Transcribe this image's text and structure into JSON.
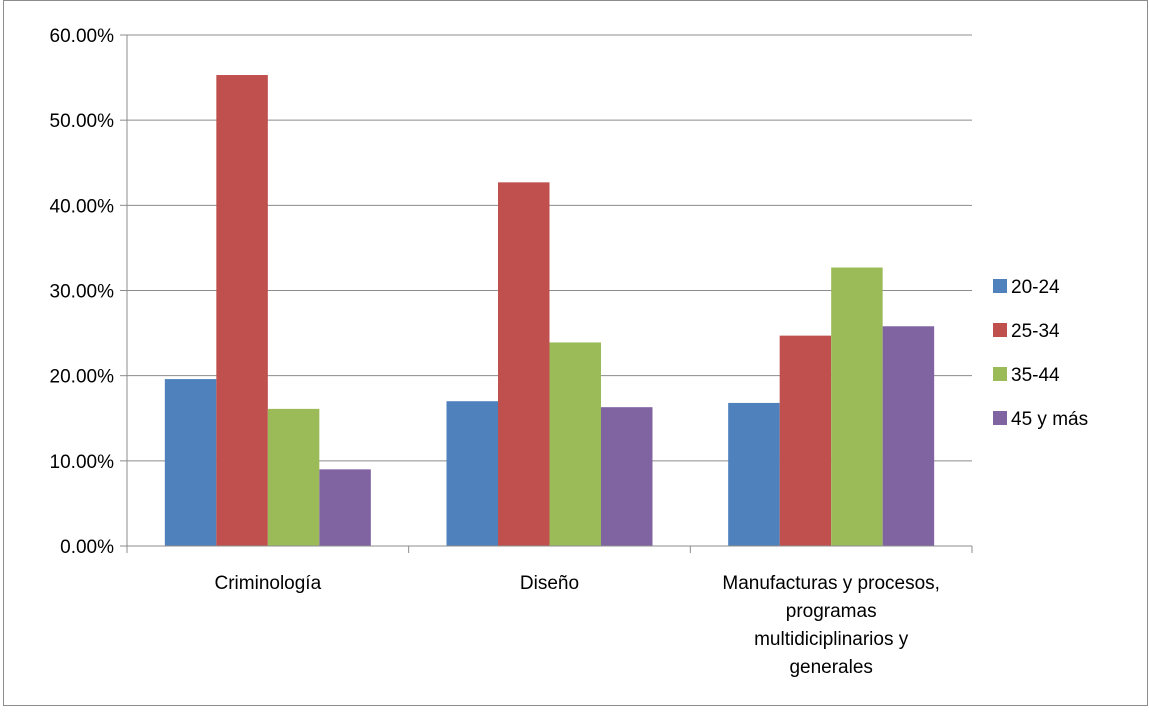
{
  "chart_data": {
    "type": "bar",
    "categories": [
      [
        "Criminología"
      ],
      [
        "Diseño"
      ],
      [
        "Manufacturas y procesos,",
        "programas",
        "multidiciplinarios y",
        "generales"
      ]
    ],
    "series": [
      {
        "name": "20-24",
        "color": "#4F81BD",
        "values": [
          19.6,
          17.0,
          16.8
        ]
      },
      {
        "name": "25-34",
        "color": "#C0504D",
        "values": [
          55.3,
          42.7,
          24.7
        ]
      },
      {
        "name": "35-44",
        "color": "#9BBB59",
        "values": [
          16.1,
          23.9,
          32.7
        ]
      },
      {
        "name": "45 y más",
        "color": "#8064A2",
        "values": [
          9.0,
          16.3,
          25.8
        ]
      }
    ],
    "yticks": [
      "0.00%",
      "10.00%",
      "20.00%",
      "30.00%",
      "40.00%",
      "50.00%",
      "60.00%"
    ],
    "ylim": [
      0,
      60
    ],
    "grid": true,
    "legend": "right",
    "title": "",
    "xlabel": "",
    "ylabel": ""
  }
}
